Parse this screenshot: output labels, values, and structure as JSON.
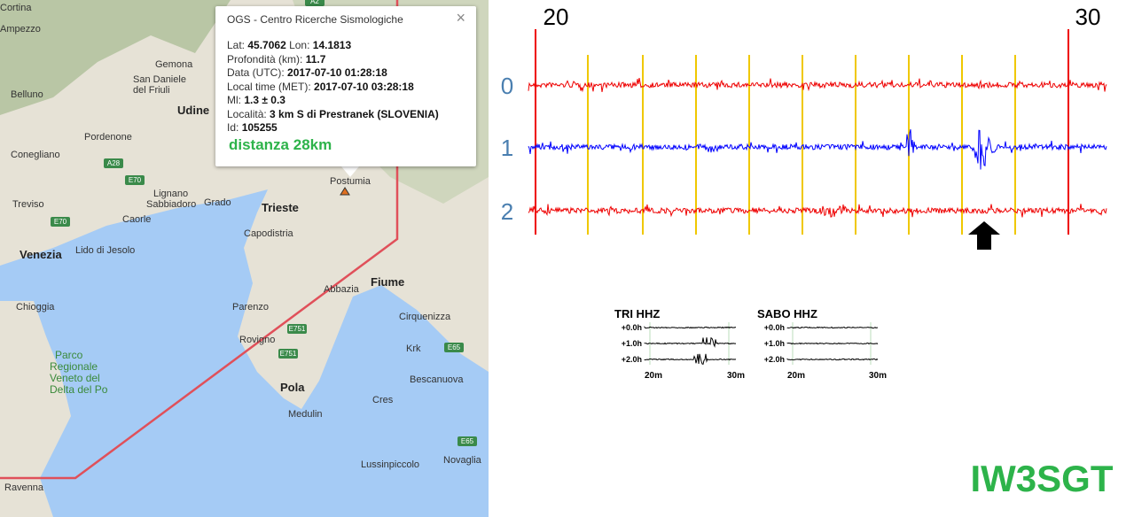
{
  "map": {
    "places": [
      "Cortina",
      "Ampezzo",
      "Belluno",
      "Gemona",
      "San Daniele",
      "del Friuli",
      "Udine",
      "Pordenone",
      "Conegliano",
      "Treviso",
      "Lignano",
      "Sabbiadoro",
      "Grado",
      "Caorle",
      "Lido di Jesolo",
      "Venezia",
      "Chioggia",
      "Ravenna",
      "Trieste",
      "Capodistria",
      "Postumia",
      "Abbazia",
      "Fiume",
      "Parenzo",
      "Rovigno",
      "Pola",
      "Medulin",
      "Cirquenizza",
      "Krk",
      "Cres",
      "Bescanuova",
      "Lussinpiccolo",
      "Novaglia"
    ],
    "park": [
      "Parco",
      "Regionale",
      "Veneto del",
      "Delta del Po"
    ],
    "roads": [
      "A28",
      "E70",
      "E70",
      "E751",
      "E751",
      "E65",
      "E65",
      "A2"
    ]
  },
  "popup": {
    "title": "OGS - Centro Ricerche Sismologiche",
    "close": "×",
    "lines": [
      [
        {
          "label": "Lat: ",
          "value": "45.7062"
        },
        {
          "label": " Lon: ",
          "value": "14.1813"
        }
      ],
      [
        {
          "label": "Profondità (km): ",
          "value": "11.7"
        }
      ],
      [
        {
          "label": "Data (UTC): ",
          "value": "2017-07-10 01:28:18"
        }
      ],
      [
        {
          "label": "Local time (MET): ",
          "value": "2017-07-10 03:28:18"
        }
      ],
      [
        {
          "label": "Ml: ",
          "value": "1.3 ± 0.3"
        }
      ],
      [
        {
          "label": "Località: ",
          "value": "3 km S di Prestranek (SLOVENIA)"
        }
      ],
      [
        {
          "label": "Id: ",
          "value": "105255"
        }
      ]
    ],
    "distance": "distanza 28km"
  },
  "seismogram": {
    "time_labels": [
      "20",
      "30"
    ],
    "channels": [
      "0",
      "1",
      "2"
    ]
  },
  "inset": {
    "stations": [
      "TRI HHZ",
      "SABO HHZ"
    ],
    "rows": [
      "+0.0h",
      "+1.0h",
      "+2.0h"
    ],
    "times": [
      "20m",
      "30m"
    ]
  },
  "callsign": "IW3SGT"
}
